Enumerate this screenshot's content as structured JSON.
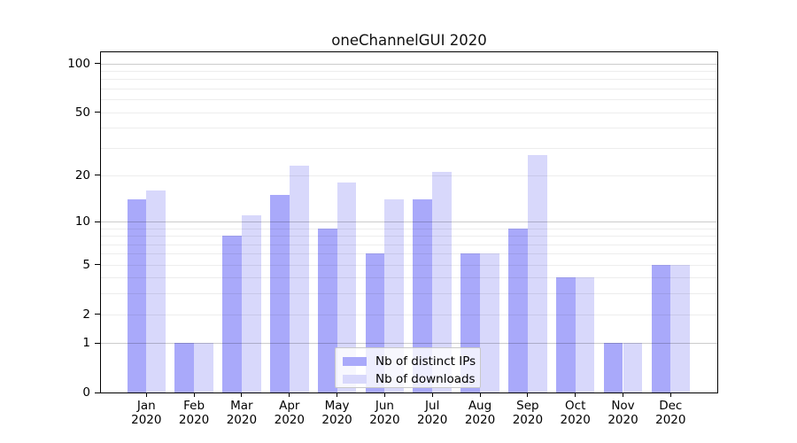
{
  "chart_data": {
    "type": "bar",
    "title": "oneChannelGUI 2020",
    "categories": [
      "Jan",
      "Feb",
      "Mar",
      "Apr",
      "May",
      "Jun",
      "Jul",
      "Aug",
      "Sep",
      "Oct",
      "Nov",
      "Dec"
    ],
    "category_year": "2020",
    "series": [
      {
        "name": "Nb of distinct IPs",
        "color": "#a9a9fa",
        "values": [
          14,
          1,
          8,
          15,
          9,
          6,
          14,
          6,
          9,
          4,
          1,
          5
        ]
      },
      {
        "name": "Nb of downloads",
        "color": "#d8d8fb",
        "values": [
          16,
          1,
          11,
          23,
          18,
          14,
          21,
          6,
          27,
          4,
          1,
          5
        ]
      }
    ],
    "yticks": [
      0,
      1,
      2,
      5,
      10,
      20,
      50,
      100
    ],
    "minor_gridlines": [
      2,
      3,
      4,
      5,
      6,
      7,
      8,
      9,
      20,
      30,
      40,
      50,
      60,
      70,
      80,
      90
    ],
    "major_gridlines": [
      1,
      10,
      100
    ],
    "yscale": "log1p",
    "ylim": [
      0,
      118
    ],
    "xlabel": "",
    "ylabel": "",
    "grid": "horizontal",
    "legend_position": "lower-center",
    "background_color": "#ffffff",
    "axis_color": "#000000"
  }
}
